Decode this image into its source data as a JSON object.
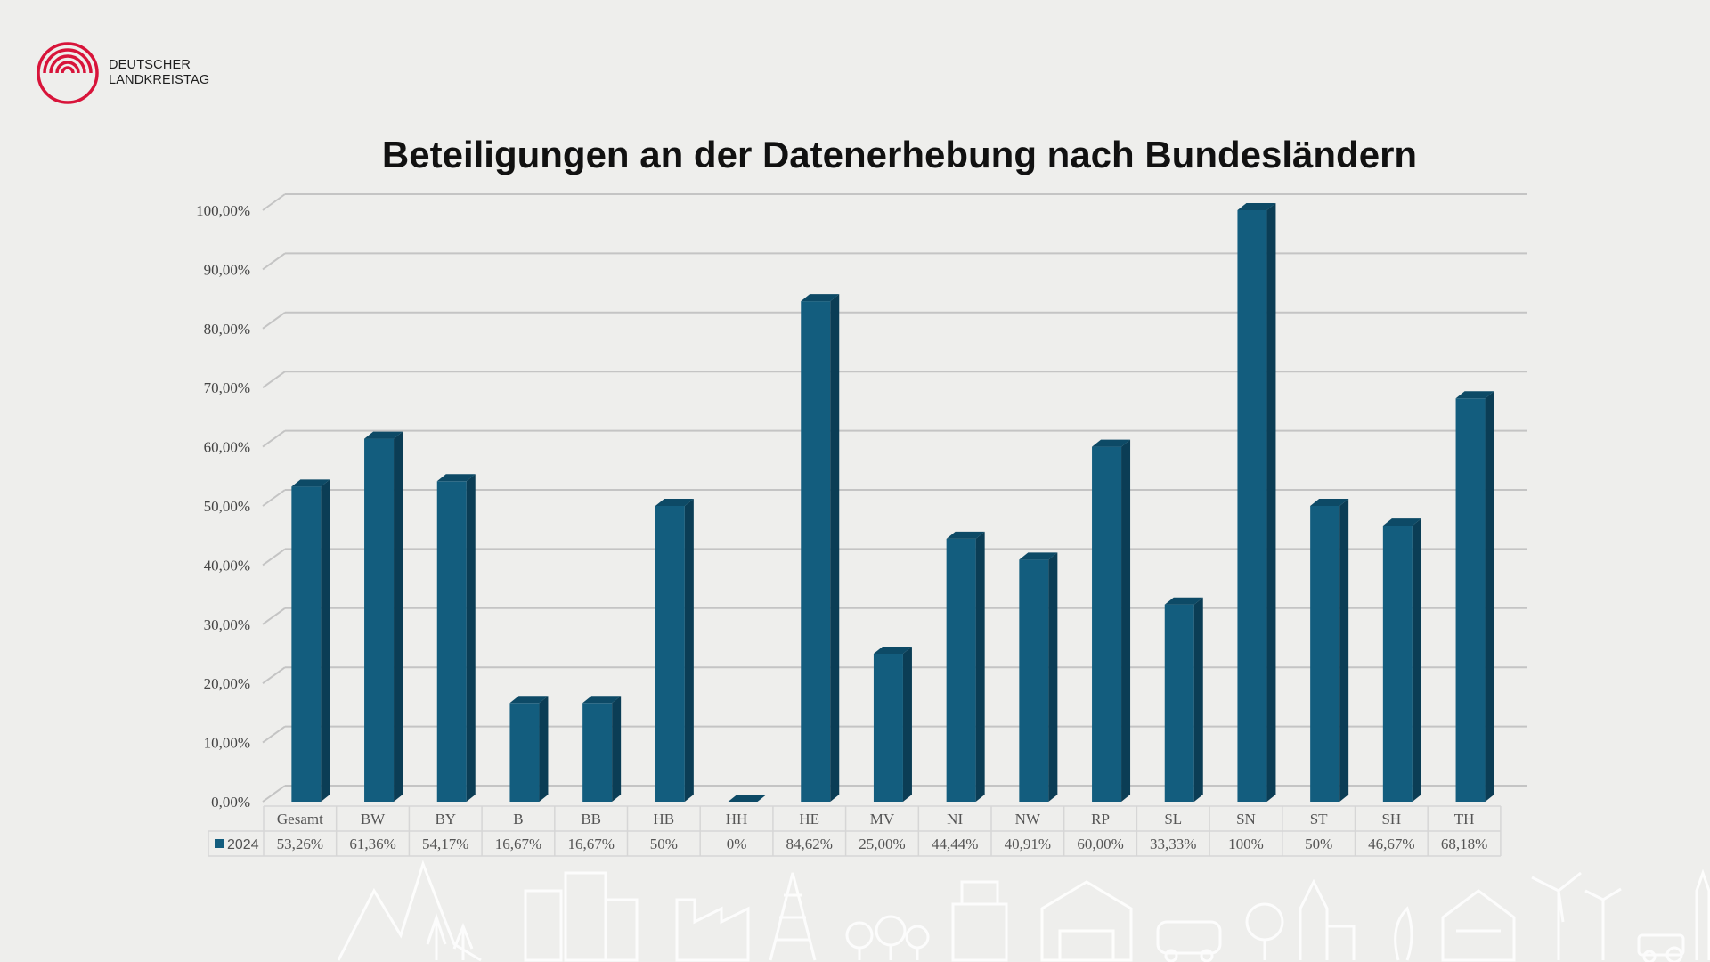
{
  "logo": {
    "line1": "DEUTSCHER",
    "line2": "LANDKREISTAG",
    "color": "#d8143a"
  },
  "chart_data": {
    "type": "bar",
    "title": "Beteiligungen an der Datenerhebung nach Bundesländern",
    "categories": [
      "Gesamt",
      "BW",
      "BY",
      "B",
      "BB",
      "HB",
      "HH",
      "HE",
      "MV",
      "NI",
      "NW",
      "RP",
      "SL",
      "SN",
      "ST",
      "SH",
      "TH"
    ],
    "series": [
      {
        "name": "2024",
        "values": [
          53.26,
          61.36,
          54.17,
          16.67,
          16.67,
          50,
          0,
          84.62,
          25.0,
          44.44,
          40.91,
          60.0,
          33.33,
          100,
          50,
          46.67,
          68.18
        ],
        "labels": [
          "53,26%",
          "61,36%",
          "54,17%",
          "16,67%",
          "16,67%",
          "50%",
          "0%",
          "84,62%",
          "25,00%",
          "44,44%",
          "40,91%",
          "60,00%",
          "33,33%",
          "100%",
          "50%",
          "46,67%",
          "68,18%"
        ]
      }
    ],
    "ylim": [
      0,
      100
    ],
    "yticks": [
      "0,00%",
      "10,00%",
      "20,00%",
      "30,00%",
      "40,00%",
      "50,00%",
      "60,00%",
      "70,00%",
      "80,00%",
      "90,00%",
      "100,00%"
    ],
    "style": "3d-column",
    "grid": true,
    "data_table": true,
    "colors": {
      "front": "#135d7e",
      "side": "#0b3d55",
      "top": "#0d4a66",
      "grid": "#c4c4c4"
    }
  }
}
